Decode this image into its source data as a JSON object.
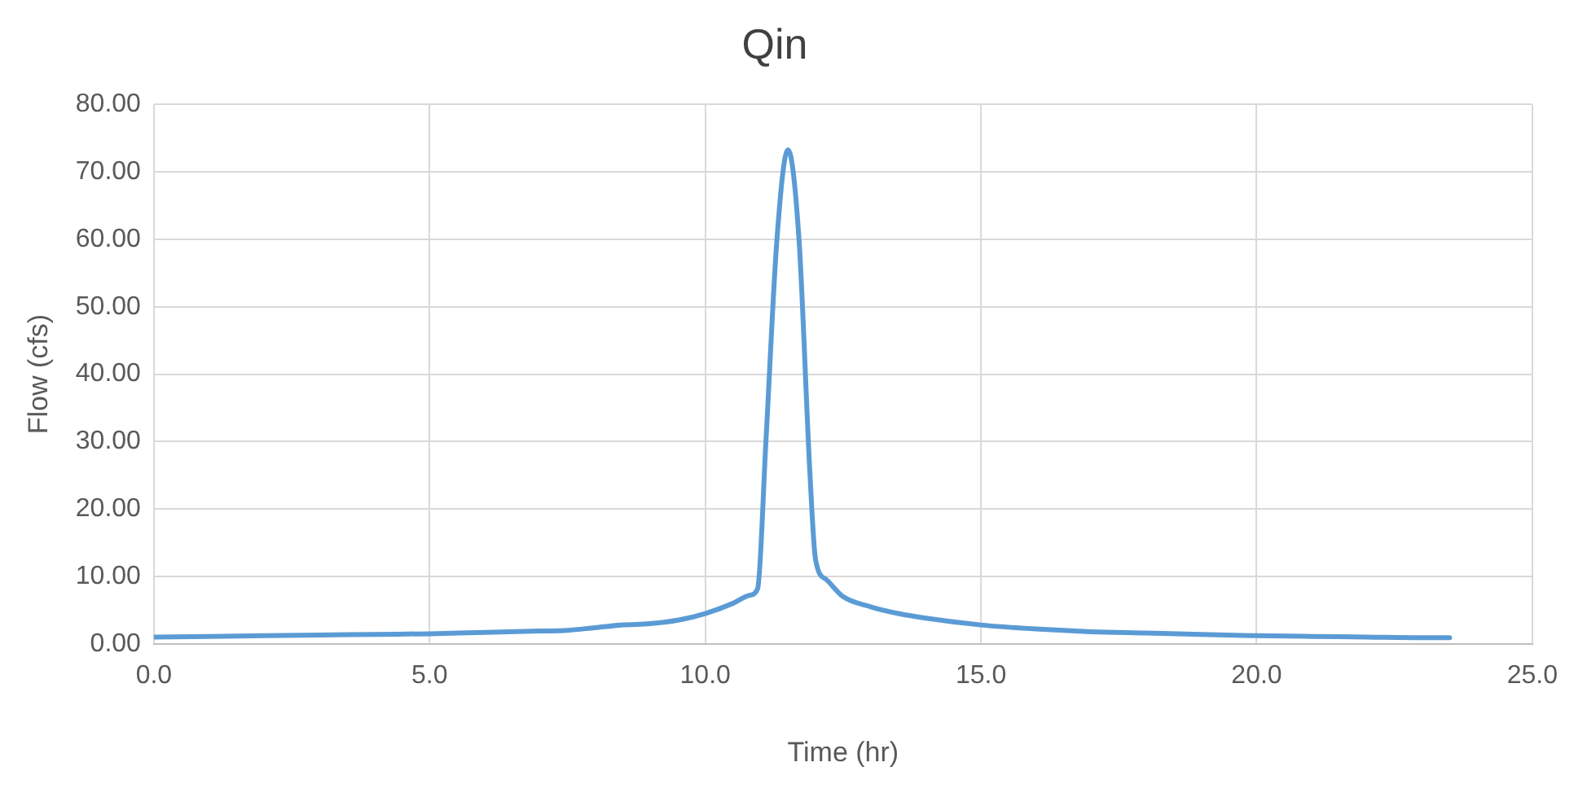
{
  "chart_data": {
    "type": "line",
    "title": "Qin",
    "xlabel": "Time (hr)",
    "ylabel": "Flow (cfs)",
    "x": [
      0,
      1,
      2,
      3,
      4,
      5,
      6,
      7,
      7.5,
      8,
      8.5,
      9,
      9.5,
      10,
      10.5,
      10.8,
      10.95,
      11.1,
      11.3,
      11.5,
      11.7,
      11.9,
      12,
      12.2,
      12.5,
      13,
      13.5,
      14,
      15,
      16,
      17,
      18,
      19,
      20,
      21,
      22,
      23,
      23.5
    ],
    "series": [
      {
        "color": "#5b9bd5",
        "values": [
          1.0,
          1.1,
          1.2,
          1.3,
          1.4,
          1.5,
          1.7,
          1.9,
          2.0,
          2.4,
          2.8,
          3.0,
          3.5,
          4.5,
          6.0,
          7.2,
          8.2,
          30,
          60,
          73.3,
          60,
          25,
          12.5,
          9.5,
          7.0,
          5.5,
          4.5,
          3.8,
          2.8,
          2.2,
          1.8,
          1.6,
          1.4,
          1.2,
          1.1,
          1.0,
          0.9,
          0.9
        ]
      }
    ],
    "xlim": [
      0,
      25
    ],
    "xticks": [
      {
        "value": 0,
        "label": "0.0"
      },
      {
        "value": 5,
        "label": "5.0"
      },
      {
        "value": 10,
        "label": "10.0"
      },
      {
        "value": 15,
        "label": "15.0"
      },
      {
        "value": 20,
        "label": "20.0"
      },
      {
        "value": 25,
        "label": "25.0"
      }
    ],
    "ylim": [
      0,
      80
    ],
    "yticks": [
      {
        "value": 0,
        "label": "0.00"
      },
      {
        "value": 10,
        "label": "10.00"
      },
      {
        "value": 20,
        "label": "20.00"
      },
      {
        "value": 30,
        "label": "30.00"
      },
      {
        "value": 40,
        "label": "40.00"
      },
      {
        "value": 50,
        "label": "50.00"
      },
      {
        "value": 60,
        "label": "60.00"
      },
      {
        "value": 70,
        "label": "70.00"
      },
      {
        "value": 80,
        "label": "80.00"
      }
    ],
    "grid": true,
    "legend": false,
    "marker": "none",
    "line_style": "solid"
  }
}
